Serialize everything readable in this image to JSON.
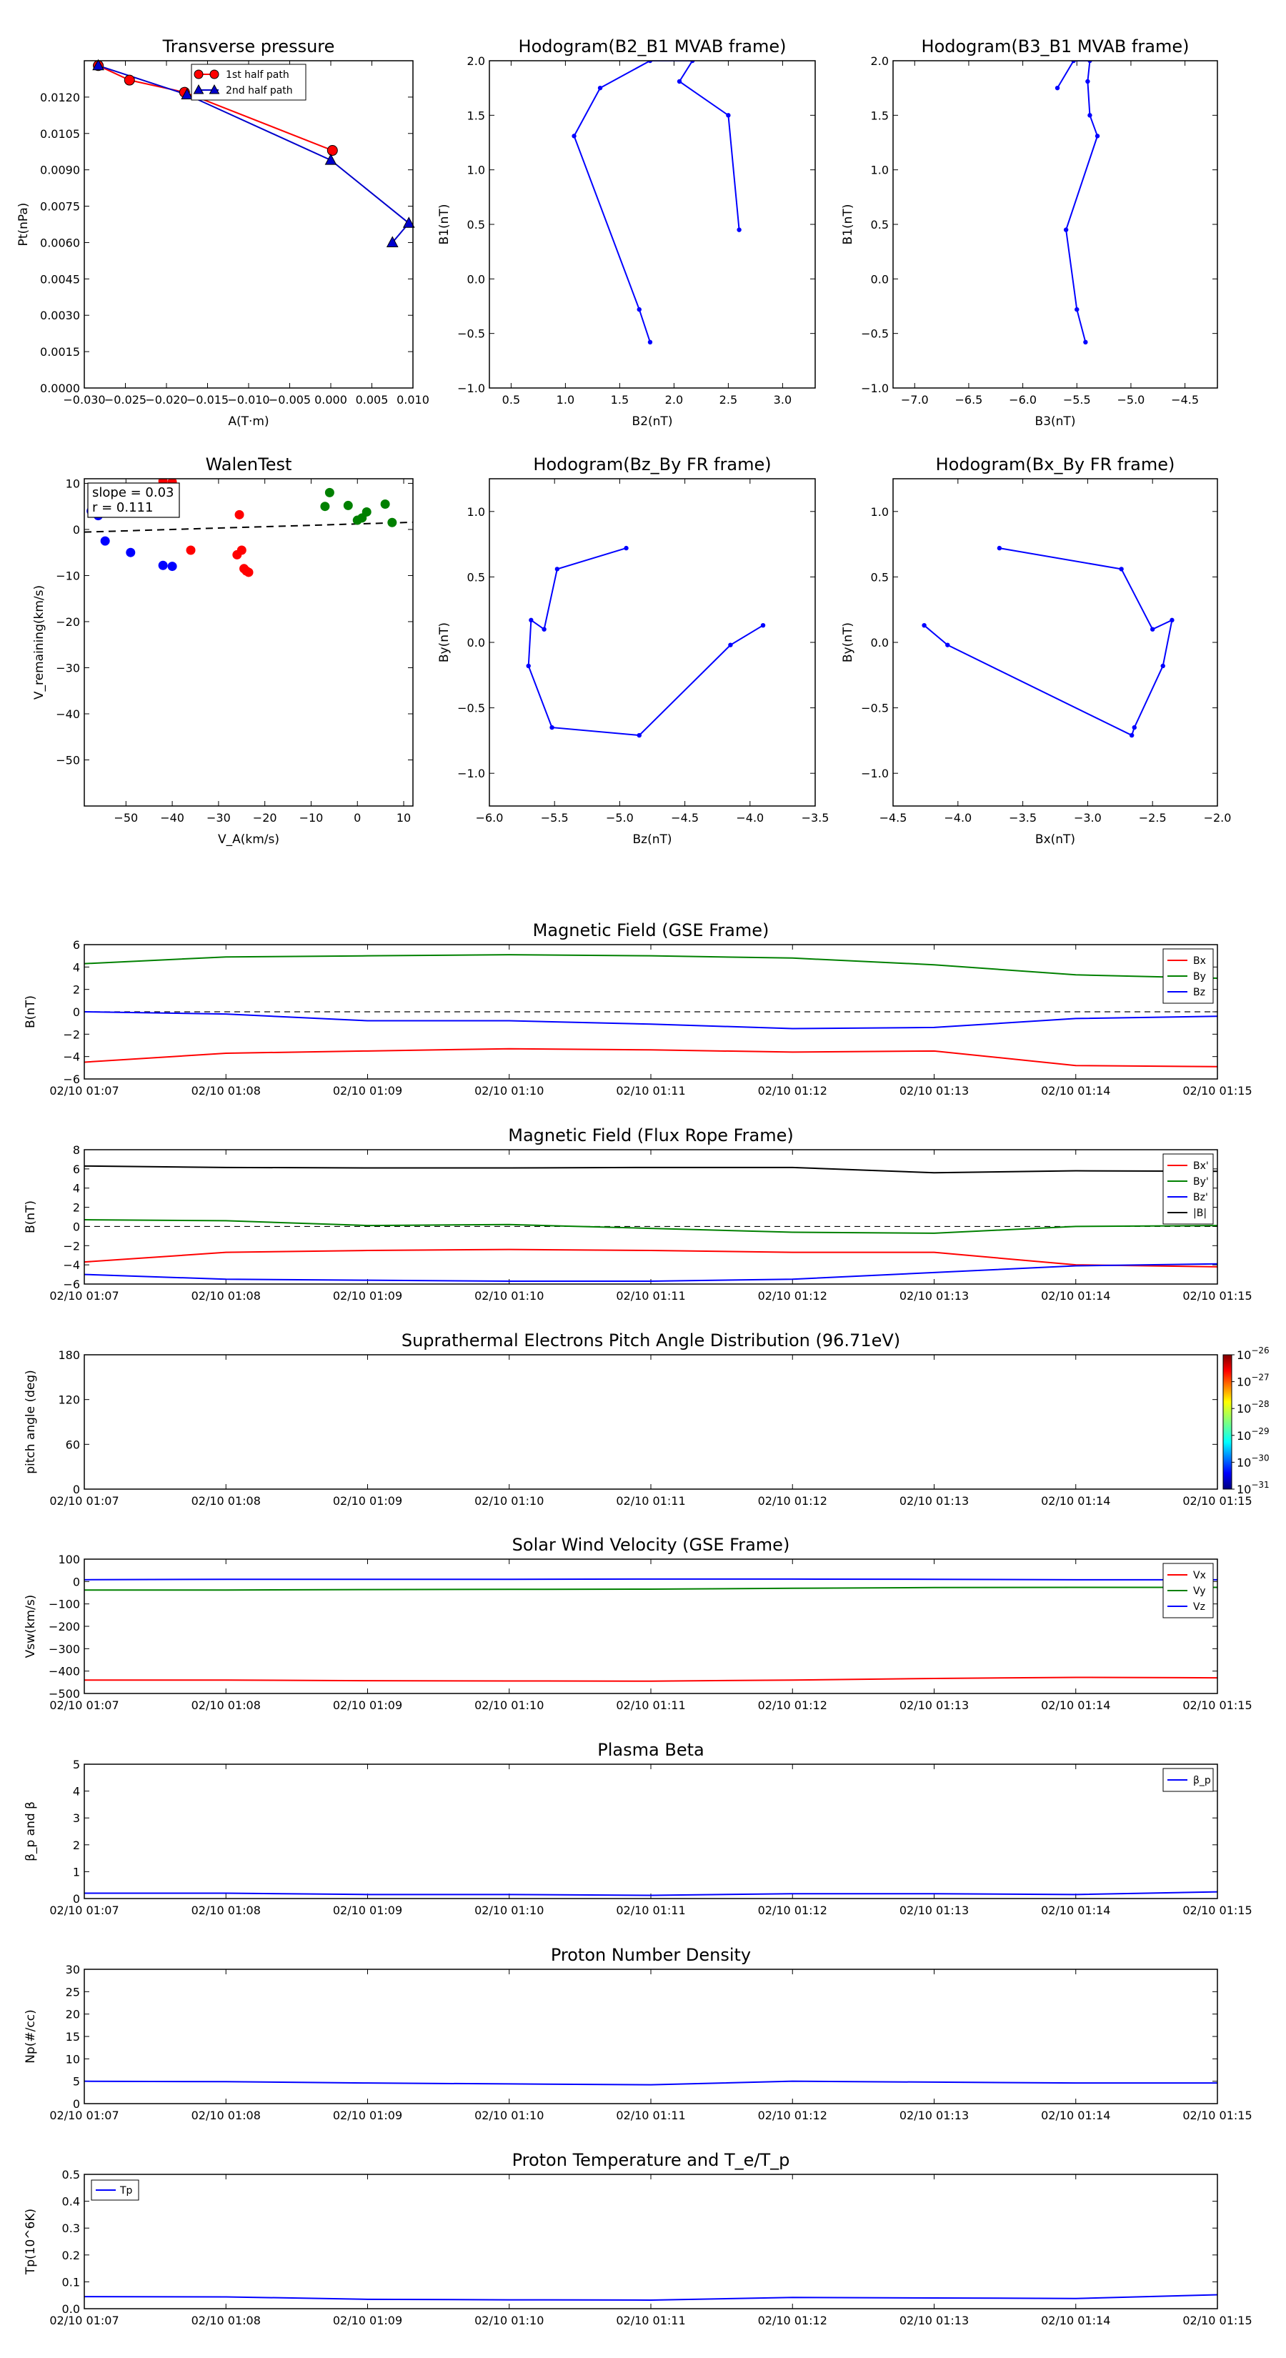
{
  "chart_data": [
    {
      "id": "tp",
      "type": "line",
      "title": "Transverse pressure",
      "xlabel": "A(T·m)",
      "ylabel": "Pt(nPa)",
      "xlim": [
        -0.03,
        0.01
      ],
      "ylim": [
        0,
        0.0135
      ],
      "xticks": [
        -0.03,
        -0.025,
        -0.02,
        -0.015,
        -0.01,
        -0.005,
        0,
        0.005,
        0.01
      ],
      "xticklabels": [
        "−0.030",
        "−0.025",
        "−0.020",
        "−0.015",
        "−0.010",
        "−0.005",
        "0.000",
        "0.005",
        "0.010"
      ],
      "yticks": [
        0,
        0.0015,
        0.003,
        0.0045,
        0.006,
        0.0075,
        0.009,
        0.0105,
        0.012
      ],
      "yticklabels": [
        "0.0000",
        "0.0015",
        "0.0030",
        "0.0045",
        "0.0060",
        "0.0075",
        "0.0090",
        "0.0105",
        "0.0120"
      ],
      "legend_position": "top-right",
      "series": [
        {
          "name": "1st half path",
          "color": "#ff0000",
          "marker": "circle",
          "x": [
            -0.0283,
            -0.0245,
            -0.0178,
            0.0002
          ],
          "y": [
            0.0133,
            0.0127,
            0.0122,
            0.0098
          ]
        },
        {
          "name": "2nd half path",
          "color": "#0000cc",
          "marker": "triangle",
          "x": [
            0.0075,
            0.0095,
            0.0,
            -0.0175,
            -0.0283
          ],
          "y": [
            0.006,
            0.0068,
            0.0094,
            0.0121,
            0.0133
          ]
        }
      ]
    },
    {
      "id": "hodo1",
      "type": "line",
      "title": "Hodogram(B2_B1 MVAB frame)",
      "xlabel": "B2(nT)",
      "ylabel": "B1(nT)",
      "xlim": [
        0.3,
        3.3
      ],
      "ylim": [
        -1.0,
        2.0
      ],
      "xticks": [
        0.5,
        1.0,
        1.5,
        2.0,
        2.5,
        3.0
      ],
      "xticklabels": [
        "0.5",
        "1.0",
        "1.5",
        "2.0",
        "2.5",
        "3.0"
      ],
      "yticks": [
        -1.0,
        -0.5,
        0.0,
        0.5,
        1.0,
        1.5,
        2.0
      ],
      "yticklabels": [
        "−1.0",
        "−0.5",
        "0.0",
        "0.5",
        "1.0",
        "1.5",
        "2.0"
      ],
      "series": [
        {
          "color": "#0000ff",
          "marker": "dot",
          "x": [
            1.78,
            1.68,
            1.08,
            1.32,
            1.78,
            2.17,
            2.05,
            2.5,
            2.6
          ],
          "y": [
            -0.58,
            -0.28,
            1.31,
            1.75,
            2.0,
            2.0,
            1.81,
            1.5,
            0.45
          ]
        }
      ]
    },
    {
      "id": "hodo2",
      "type": "line",
      "title": "Hodogram(B3_B1 MVAB frame)",
      "xlabel": "B3(nT)",
      "ylabel": "B1(nT)",
      "xlim": [
        -7.2,
        -4.2
      ],
      "ylim": [
        -1.0,
        2.0
      ],
      "xticks": [
        -7.0,
        -6.5,
        -6.0,
        -5.5,
        -5.0,
        -4.5
      ],
      "xticklabels": [
        "−7.0",
        "−6.5",
        "−6.0",
        "−5.5",
        "−5.0",
        "−4.5"
      ],
      "yticks": [
        -1.0,
        -0.5,
        0.0,
        0.5,
        1.0,
        1.5,
        2.0
      ],
      "yticklabels": [
        "−1.0",
        "−0.5",
        "0.0",
        "0.5",
        "1.0",
        "1.5",
        "2.0"
      ],
      "series": [
        {
          "color": "#0000ff",
          "marker": "dot",
          "x": [
            -5.42,
            -5.5,
            -5.6,
            -5.31,
            -5.38,
            -5.4,
            -5.38,
            -5.53,
            -5.68
          ],
          "y": [
            -0.58,
            -0.28,
            0.45,
            1.31,
            1.5,
            1.81,
            2.0,
            2.0,
            1.75
          ]
        }
      ]
    },
    {
      "id": "walen",
      "type": "scatter",
      "title": "WalenTest",
      "xlabel": "V_A(km/s)",
      "ylabel": "V_remaining(km/s)",
      "xlim": [
        -59,
        12
      ],
      "ylim": [
        -60,
        11
      ],
      "xticks": [
        -50,
        -40,
        -30,
        -20,
        -10,
        0,
        10
      ],
      "xticklabels": [
        "−50",
        "−40",
        "−30",
        "−20",
        "−10",
        "0",
        "10"
      ],
      "yticks": [
        -50,
        -40,
        -30,
        -20,
        -10,
        0,
        10
      ],
      "yticklabels": [
        "−50",
        "−40",
        "−30",
        "−20",
        "−10",
        "0",
        "10"
      ],
      "annotation": [
        "slope = 0.03",
        "r = 0.111"
      ],
      "fit_line": {
        "slope": 0.03,
        "intercept": 1.2
      },
      "series": [
        {
          "color": "#0000ff",
          "x": [
            -57.5,
            -56,
            -54.5,
            -49,
            -42,
            -40
          ],
          "y": [
            4,
            3,
            -2.5,
            -5,
            -7.8,
            -8
          ]
        },
        {
          "color": "#ff0000",
          "x": [
            -42,
            -40,
            -36,
            -26,
            -25,
            -25.5,
            -24.5,
            -24,
            -23.5
          ],
          "y": [
            10.5,
            10.3,
            -4.5,
            -5.5,
            -4.5,
            3.2,
            -8.5,
            -9,
            -9.3
          ]
        },
        {
          "color": "#008000",
          "x": [
            -7,
            -6,
            -2,
            0,
            1,
            2,
            6,
            7.5
          ],
          "y": [
            5,
            8,
            5.2,
            2,
            2.5,
            3.8,
            5.5,
            1.5
          ]
        }
      ]
    },
    {
      "id": "hodo3",
      "type": "line",
      "title": "Hodogram(Bz_By FR frame)",
      "xlabel": "Bz(nT)",
      "ylabel": "By(nT)",
      "xlim": [
        -6.0,
        -3.5
      ],
      "ylim": [
        -1.25,
        1.25
      ],
      "xticks": [
        -6.0,
        -5.5,
        -5.0,
        -4.5,
        -4.0,
        -3.5
      ],
      "xticklabels": [
        "−6.0",
        "−5.5",
        "−5.0",
        "−4.5",
        "−4.0",
        "−3.5"
      ],
      "yticks": [
        -1.0,
        -0.5,
        0.0,
        0.5,
        1.0
      ],
      "yticklabels": [
        "−1.0",
        "−0.5",
        "0.0",
        "0.5",
        "1.0"
      ],
      "series": [
        {
          "color": "#0000ff",
          "marker": "dot",
          "x": [
            -4.95,
            -5.48,
            -5.58,
            -5.68,
            -5.7,
            -5.52,
            -4.85,
            -4.15,
            -3.9
          ],
          "y": [
            0.72,
            0.56,
            0.1,
            0.17,
            -0.18,
            -0.65,
            -0.71,
            -0.02,
            0.13
          ]
        }
      ]
    },
    {
      "id": "hodo4",
      "type": "line",
      "title": "Hodogram(Bx_By FR frame)",
      "xlabel": "Bx(nT)",
      "ylabel": "By(nT)",
      "xlim": [
        -4.5,
        -2.0
      ],
      "ylim": [
        -1.25,
        1.25
      ],
      "xticks": [
        -4.5,
        -4.0,
        -3.5,
        -3.0,
        -2.5,
        -2.0
      ],
      "xticklabels": [
        "−4.5",
        "−4.0",
        "−3.5",
        "−3.0",
        "−2.5",
        "−2.0"
      ],
      "yticks": [
        -1.0,
        -0.5,
        0.0,
        0.5,
        1.0
      ],
      "yticklabels": [
        "−1.0",
        "−0.5",
        "0.0",
        "0.5",
        "1.0"
      ],
      "series": [
        {
          "color": "#0000ff",
          "marker": "dot",
          "x": [
            -3.68,
            -2.74,
            -2.5,
            -2.35,
            -2.42,
            -2.64,
            -2.66,
            -4.08,
            -4.26
          ],
          "y": [
            0.72,
            0.56,
            0.1,
            0.17,
            -0.18,
            -0.65,
            -0.71,
            -0.02,
            0.13
          ]
        }
      ]
    },
    {
      "id": "ts_bgse",
      "type": "line",
      "title": "Magnetic Field (GSE Frame)",
      "ylabel": "B(nT)",
      "ylim": [
        -6,
        6
      ],
      "yticks": [
        -6,
        -4,
        -2,
        0,
        2,
        4,
        6
      ],
      "yticklabels": [
        "−6",
        "−4",
        "−2",
        "0",
        "2",
        "4",
        "6"
      ],
      "zero_line": true,
      "x": [
        "02/10 01:07",
        "02/10 01:08",
        "02/10 01:09",
        "02/10 01:10",
        "02/10 01:11",
        "02/10 01:12",
        "02/10 01:13",
        "02/10 01:14",
        "02/10 01:15"
      ],
      "series": [
        {
          "name": "Bx",
          "color": "#ff0000",
          "values": [
            -4.5,
            -3.7,
            -3.5,
            -3.3,
            -3.4,
            -3.6,
            -3.5,
            -4.8,
            -4.9
          ]
        },
        {
          "name": "By",
          "color": "#008000",
          "values": [
            4.3,
            4.9,
            5.0,
            5.1,
            5.0,
            4.8,
            4.2,
            3.3,
            3.0
          ]
        },
        {
          "name": "Bz",
          "color": "#0000ff",
          "values": [
            0.0,
            -0.2,
            -0.8,
            -0.8,
            -1.1,
            -1.5,
            -1.4,
            -0.6,
            -0.4
          ]
        }
      ]
    },
    {
      "id": "ts_bfr",
      "type": "line",
      "title": "Magnetic Field (Flux Rope Frame)",
      "ylabel": "B(nT)",
      "ylim": [
        -6,
        8
      ],
      "yticks": [
        -6,
        -4,
        -2,
        0,
        2,
        4,
        6,
        8
      ],
      "yticklabels": [
        "−6",
        "−4",
        "−2",
        "0",
        "2",
        "4",
        "6",
        "8"
      ],
      "zero_line": true,
      "x": [
        "02/10 01:07",
        "02/10 01:08",
        "02/10 01:09",
        "02/10 01:10",
        "02/10 01:11",
        "02/10 01:12",
        "02/10 01:13",
        "02/10 01:14",
        "02/10 01:15"
      ],
      "series": [
        {
          "name": "Bx'",
          "color": "#ff0000",
          "values": [
            -3.7,
            -2.7,
            -2.5,
            -2.4,
            -2.5,
            -2.7,
            -2.7,
            -4.0,
            -4.2
          ]
        },
        {
          "name": "By'",
          "color": "#008000",
          "values": [
            0.7,
            0.6,
            0.1,
            0.2,
            -0.2,
            -0.6,
            -0.7,
            0.0,
            0.1
          ]
        },
        {
          "name": "Bz'",
          "color": "#0000ff",
          "values": [
            -5.0,
            -5.5,
            -5.6,
            -5.7,
            -5.7,
            -5.5,
            -4.8,
            -4.1,
            -3.9
          ]
        },
        {
          "name": "|B|",
          "color": "#000000",
          "values": [
            6.3,
            6.15,
            6.1,
            6.1,
            6.15,
            6.15,
            5.6,
            5.8,
            5.75
          ]
        }
      ]
    },
    {
      "id": "ts_pad",
      "type": "heatmap",
      "title": "Suprathermal Electrons Pitch Angle Distribution (96.71eV)",
      "ylabel": "pitch angle (deg)",
      "ylim": [
        0,
        180
      ],
      "yticks": [
        0,
        60,
        120,
        180
      ],
      "yticklabels": [
        "0",
        "60",
        "120",
        "180"
      ],
      "x": [
        "02/10 01:07",
        "02/10 01:08",
        "02/10 01:09",
        "02/10 01:10",
        "02/10 01:11",
        "02/10 01:12",
        "02/10 01:13",
        "02/10 01:14",
        "02/10 01:15"
      ],
      "colorbar": {
        "labels": [
          {
            "base": "10",
            "exp": "−26"
          },
          {
            "base": "10",
            "exp": "−27"
          },
          {
            "base": "10",
            "exp": "−28"
          },
          {
            "base": "10",
            "exp": "−29"
          },
          {
            "base": "10",
            "exp": "−30"
          },
          {
            "base": "10",
            "exp": "−31"
          }
        ]
      },
      "series": []
    },
    {
      "id": "ts_vsw",
      "type": "line",
      "title": "Solar Wind Velocity (GSE Frame)",
      "ylabel": "Vsw(km/s)",
      "ylim": [
        -500,
        100
      ],
      "yticks": [
        -500,
        -400,
        -300,
        -200,
        -100,
        0,
        100
      ],
      "yticklabels": [
        "−500",
        "−400",
        "−300",
        "−200",
        "−100",
        "0",
        "100"
      ],
      "x": [
        "02/10 01:07",
        "02/10 01:08",
        "02/10 01:09",
        "02/10 01:10",
        "02/10 01:11",
        "02/10 01:12",
        "02/10 01:13",
        "02/10 01:14",
        "02/10 01:15"
      ],
      "series": [
        {
          "name": "Vx",
          "color": "#ff0000",
          "values": [
            -440,
            -440,
            -443,
            -444,
            -445,
            -440,
            -433,
            -428,
            -430
          ]
        },
        {
          "name": "Vy",
          "color": "#008000",
          "values": [
            -38,
            -38,
            -36,
            -35,
            -34,
            -30,
            -27,
            -26,
            -26
          ]
        },
        {
          "name": "Vz",
          "color": "#0000ff",
          "values": [
            8,
            10,
            10,
            10,
            11,
            11,
            10,
            8,
            8
          ]
        }
      ]
    },
    {
      "id": "ts_beta",
      "type": "line",
      "title": "Plasma Beta",
      "ylabel": "β_p and β",
      "ylim": [
        0,
        5
      ],
      "yticks": [
        0,
        1,
        2,
        3,
        4,
        5
      ],
      "yticklabels": [
        "0",
        "1",
        "2",
        "3",
        "4",
        "5"
      ],
      "x": [
        "02/10 01:07",
        "02/10 01:08",
        "02/10 01:09",
        "02/10 01:10",
        "02/10 01:11",
        "02/10 01:12",
        "02/10 01:13",
        "02/10 01:14",
        "02/10 01:15"
      ],
      "series": [
        {
          "name": "β_p",
          "color": "#0000ff",
          "values": [
            0.2,
            0.2,
            0.15,
            0.15,
            0.12,
            0.18,
            0.18,
            0.15,
            0.25
          ]
        }
      ]
    },
    {
      "id": "ts_np",
      "type": "line",
      "title": "Proton Number Density",
      "ylabel": "Np(#/cc)",
      "ylim": [
        0,
        30
      ],
      "yticks": [
        0,
        5,
        10,
        15,
        20,
        25,
        30
      ],
      "yticklabels": [
        "0",
        "5",
        "10",
        "15",
        "20",
        "25",
        "30"
      ],
      "x": [
        "02/10 01:07",
        "02/10 01:08",
        "02/10 01:09",
        "02/10 01:10",
        "02/10 01:11",
        "02/10 01:12",
        "02/10 01:13",
        "02/10 01:14",
        "02/10 01:15"
      ],
      "series": [
        {
          "color": "#0000ff",
          "values": [
            5.0,
            4.9,
            4.6,
            4.4,
            4.2,
            5.0,
            4.8,
            4.6,
            4.6
          ]
        }
      ]
    },
    {
      "id": "ts_tp",
      "type": "line",
      "title": "Proton Temperature and T_e/T_p",
      "ylabel": "Tp(10^6K)",
      "ylim": [
        0,
        0.5
      ],
      "yticks": [
        0,
        0.1,
        0.2,
        0.3,
        0.4,
        0.5
      ],
      "yticklabels": [
        "0.0",
        "0.1",
        "0.2",
        "0.3",
        "0.4",
        "0.5"
      ],
      "x": [
        "02/10 01:07",
        "02/10 01:08",
        "02/10 01:09",
        "02/10 01:10",
        "02/10 01:11",
        "02/10 01:12",
        "02/10 01:13",
        "02/10 01:14",
        "02/10 01:15"
      ],
      "series": [
        {
          "name": "Tp",
          "color": "#0000ff",
          "values": [
            0.045,
            0.044,
            0.035,
            0.033,
            0.032,
            0.042,
            0.04,
            0.038,
            0.052
          ]
        }
      ]
    }
  ]
}
